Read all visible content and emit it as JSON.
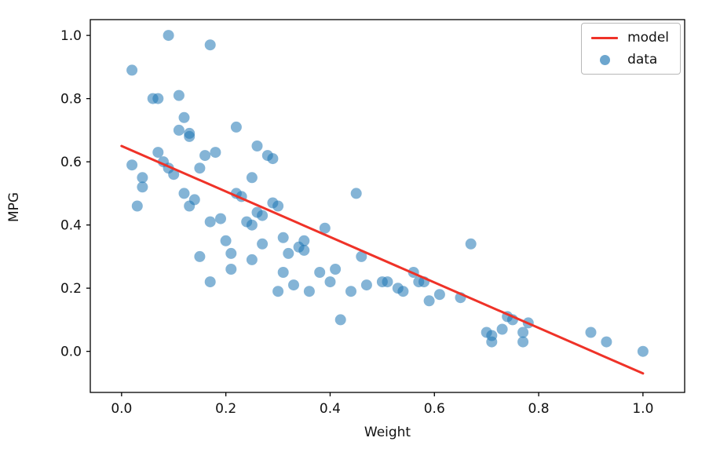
{
  "chart_data": {
    "type": "scatter",
    "title": "",
    "xlabel": "Weight",
    "ylabel": "MPG",
    "xlim": [
      -0.06,
      1.08
    ],
    "ylim": [
      -0.13,
      1.05
    ],
    "xtick_values": [
      0.0,
      0.2,
      0.4,
      0.6,
      0.8,
      1.0
    ],
    "xtick_labels": [
      "0.0",
      "0.2",
      "0.4",
      "0.6",
      "0.8",
      "1.0"
    ],
    "ytick_values": [
      0.0,
      0.2,
      0.4,
      0.6,
      0.8,
      1.0
    ],
    "ytick_labels": [
      "0.0",
      "0.2",
      "0.4",
      "0.6",
      "0.8",
      "1.0"
    ],
    "grid": false,
    "legend": {
      "position": "upper right",
      "entries": [
        {
          "label": "model",
          "type": "line",
          "color": "#ef3228"
        },
        {
          "label": "data",
          "type": "marker",
          "color": "#1f77b4",
          "alpha": 0.55
        }
      ]
    },
    "series": [
      {
        "name": "model",
        "type": "line",
        "color": "#ef3228",
        "linewidth": 3,
        "points": [
          [
            0.0,
            0.65
          ],
          [
            1.0,
            -0.07
          ]
        ]
      },
      {
        "name": "data",
        "type": "scatter",
        "color": "#1f77b4",
        "alpha": 0.55,
        "marker_radius": 7,
        "points": [
          [
            0.02,
            0.89
          ],
          [
            0.02,
            0.59
          ],
          [
            0.03,
            0.46
          ],
          [
            0.04,
            0.55
          ],
          [
            0.04,
            0.52
          ],
          [
            0.06,
            0.8
          ],
          [
            0.07,
            0.8
          ],
          [
            0.07,
            0.63
          ],
          [
            0.08,
            0.6
          ],
          [
            0.09,
            1.0
          ],
          [
            0.09,
            0.58
          ],
          [
            0.1,
            0.56
          ],
          [
            0.11,
            0.81
          ],
          [
            0.11,
            0.7
          ],
          [
            0.12,
            0.74
          ],
          [
            0.12,
            0.5
          ],
          [
            0.13,
            0.68
          ],
          [
            0.13,
            0.69
          ],
          [
            0.13,
            0.46
          ],
          [
            0.14,
            0.48
          ],
          [
            0.15,
            0.58
          ],
          [
            0.15,
            0.3
          ],
          [
            0.16,
            0.62
          ],
          [
            0.17,
            0.97
          ],
          [
            0.17,
            0.41
          ],
          [
            0.17,
            0.22
          ],
          [
            0.18,
            0.63
          ],
          [
            0.19,
            0.42
          ],
          [
            0.2,
            0.35
          ],
          [
            0.21,
            0.26
          ],
          [
            0.21,
            0.31
          ],
          [
            0.22,
            0.71
          ],
          [
            0.22,
            0.5
          ],
          [
            0.23,
            0.49
          ],
          [
            0.24,
            0.41
          ],
          [
            0.25,
            0.4
          ],
          [
            0.25,
            0.55
          ],
          [
            0.25,
            0.29
          ],
          [
            0.26,
            0.65
          ],
          [
            0.26,
            0.44
          ],
          [
            0.27,
            0.43
          ],
          [
            0.27,
            0.34
          ],
          [
            0.28,
            0.62
          ],
          [
            0.29,
            0.61
          ],
          [
            0.29,
            0.47
          ],
          [
            0.3,
            0.46
          ],
          [
            0.3,
            0.19
          ],
          [
            0.31,
            0.36
          ],
          [
            0.31,
            0.25
          ],
          [
            0.32,
            0.31
          ],
          [
            0.33,
            0.21
          ],
          [
            0.34,
            0.33
          ],
          [
            0.35,
            0.35
          ],
          [
            0.35,
            0.32
          ],
          [
            0.36,
            0.19
          ],
          [
            0.38,
            0.25
          ],
          [
            0.39,
            0.39
          ],
          [
            0.4,
            0.22
          ],
          [
            0.41,
            0.26
          ],
          [
            0.42,
            0.1
          ],
          [
            0.44,
            0.19
          ],
          [
            0.45,
            0.5
          ],
          [
            0.46,
            0.3
          ],
          [
            0.47,
            0.21
          ],
          [
            0.5,
            0.22
          ],
          [
            0.51,
            0.22
          ],
          [
            0.53,
            0.2
          ],
          [
            0.54,
            0.19
          ],
          [
            0.56,
            0.25
          ],
          [
            0.57,
            0.22
          ],
          [
            0.58,
            0.22
          ],
          [
            0.59,
            0.16
          ],
          [
            0.61,
            0.18
          ],
          [
            0.65,
            0.17
          ],
          [
            0.67,
            0.34
          ],
          [
            0.7,
            0.06
          ],
          [
            0.71,
            0.03
          ],
          [
            0.71,
            0.05
          ],
          [
            0.73,
            0.07
          ],
          [
            0.74,
            0.11
          ],
          [
            0.75,
            0.1
          ],
          [
            0.77,
            0.03
          ],
          [
            0.77,
            0.06
          ],
          [
            0.78,
            0.09
          ],
          [
            0.9,
            0.06
          ],
          [
            0.93,
            0.03
          ],
          [
            1.0,
            0.0
          ]
        ]
      }
    ]
  },
  "legend_model_label": "model",
  "legend_data_label": "data"
}
